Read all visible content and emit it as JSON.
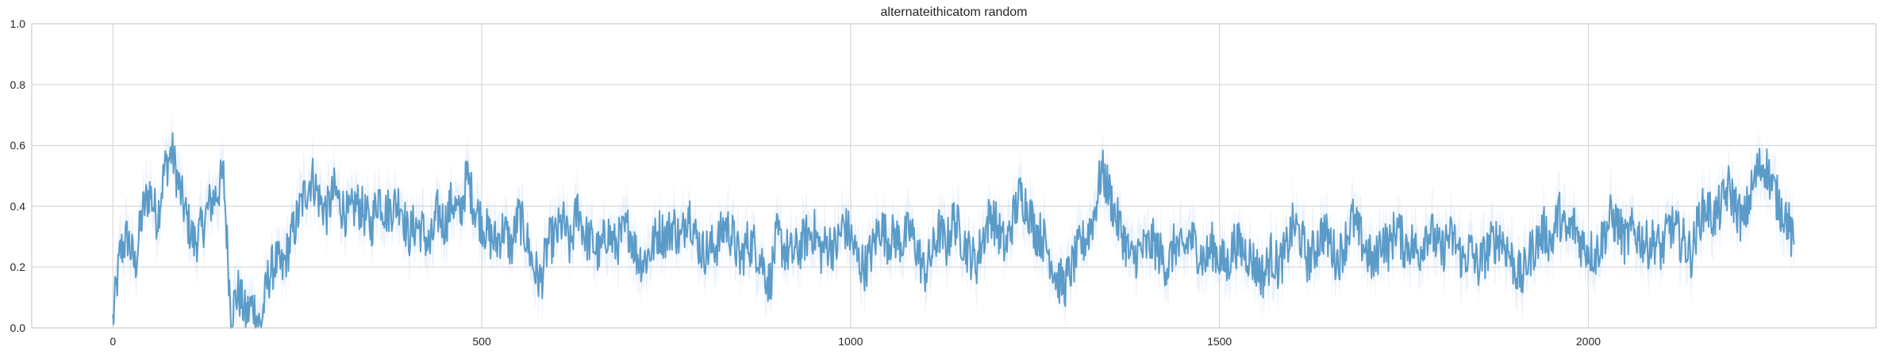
{
  "chart_data": {
    "type": "line",
    "title": "alternateithicatom random",
    "xlabel": "",
    "ylabel": "",
    "xlim": [
      -110,
      2390
    ],
    "ylim": [
      0.0,
      1.0
    ],
    "xticks": [
      0,
      500,
      1000,
      1500,
      2000
    ],
    "yticks": [
      0.0,
      0.2,
      0.4,
      0.6,
      0.8,
      1.0
    ],
    "ytick_labels": [
      "0.0",
      "0.2",
      "0.4",
      "0.6",
      "0.8",
      "1.0"
    ],
    "grid": true,
    "legend": "none",
    "series": [
      {
        "x_start": 0,
        "x_step": 10,
        "values": [
          0.02,
          0.25,
          0.3,
          0.2,
          0.38,
          0.45,
          0.36,
          0.52,
          0.58,
          0.46,
          0.36,
          0.28,
          0.32,
          0.4,
          0.44,
          0.5,
          0.05,
          0.12,
          0.04,
          0.08,
          0.0,
          0.16,
          0.22,
          0.19,
          0.28,
          0.36,
          0.44,
          0.5,
          0.42,
          0.38,
          0.45,
          0.4,
          0.36,
          0.41,
          0.38,
          0.33,
          0.44,
          0.38,
          0.4,
          0.42,
          0.3,
          0.34,
          0.32,
          0.26,
          0.38,
          0.34,
          0.42,
          0.36,
          0.5,
          0.4,
          0.35,
          0.3,
          0.28,
          0.33,
          0.26,
          0.37,
          0.3,
          0.2,
          0.15,
          0.28,
          0.3,
          0.35,
          0.26,
          0.4,
          0.3,
          0.28,
          0.24,
          0.32,
          0.27,
          0.3,
          0.33,
          0.24,
          0.22,
          0.26,
          0.32,
          0.3,
          0.34,
          0.28,
          0.4,
          0.3,
          0.25,
          0.26,
          0.28,
          0.34,
          0.3,
          0.22,
          0.28,
          0.27,
          0.22,
          0.14,
          0.3,
          0.26,
          0.24,
          0.26,
          0.3,
          0.32,
          0.25,
          0.28,
          0.26,
          0.34,
          0.3,
          0.22,
          0.2,
          0.26,
          0.34,
          0.29,
          0.3,
          0.28,
          0.32,
          0.26,
          0.18,
          0.24,
          0.32,
          0.27,
          0.36,
          0.3,
          0.25,
          0.21,
          0.3,
          0.38,
          0.32,
          0.26,
          0.36,
          0.44,
          0.4,
          0.32,
          0.3,
          0.24,
          0.16,
          0.14,
          0.2,
          0.26,
          0.3,
          0.37,
          0.52,
          0.45,
          0.36,
          0.3,
          0.22,
          0.25,
          0.26,
          0.28,
          0.24,
          0.2,
          0.28,
          0.24,
          0.3,
          0.26,
          0.22,
          0.27,
          0.23,
          0.2,
          0.28,
          0.26,
          0.24,
          0.2,
          0.17,
          0.24,
          0.2,
          0.25,
          0.34,
          0.3,
          0.22,
          0.26,
          0.32,
          0.28,
          0.22,
          0.28,
          0.36,
          0.3,
          0.25,
          0.2,
          0.3,
          0.26,
          0.34,
          0.27,
          0.28,
          0.24,
          0.32,
          0.3,
          0.24,
          0.3,
          0.28,
          0.22,
          0.26,
          0.2,
          0.24,
          0.28,
          0.3,
          0.26,
          0.2,
          0.16,
          0.24,
          0.28,
          0.32,
          0.28,
          0.38,
          0.3,
          0.34,
          0.28,
          0.26,
          0.24,
          0.3,
          0.36,
          0.34,
          0.28,
          0.32,
          0.3,
          0.27,
          0.29,
          0.25,
          0.34,
          0.31,
          0.28,
          0.24,
          0.36,
          0.4,
          0.36,
          0.4,
          0.46,
          0.4,
          0.34,
          0.44,
          0.52,
          0.54,
          0.46,
          0.4,
          0.36,
          0.24
        ]
      }
    ]
  }
}
